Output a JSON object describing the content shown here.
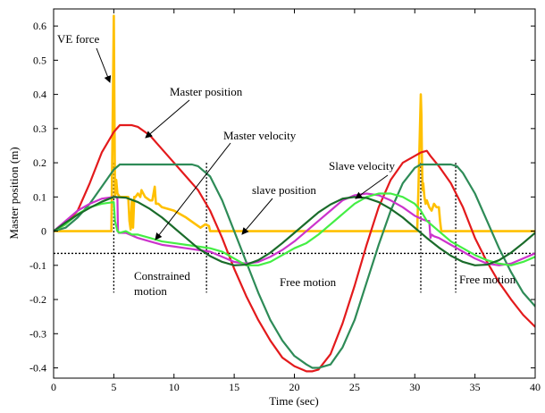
{
  "chart_data": {
    "type": "line",
    "title": "",
    "xlabel": "Time (sec)",
    "ylabel": "Master position (m)",
    "xlim": [
      0,
      40
    ],
    "ylim": [
      -0.43,
      0.65
    ],
    "xticks": [
      0,
      5,
      10,
      15,
      20,
      25,
      30,
      35,
      40
    ],
    "xtick_labels": [
      "0",
      "5",
      "10",
      "15",
      "20",
      "25",
      "30",
      "35",
      "40"
    ],
    "yticks": [
      -0.4,
      -0.3,
      -0.2,
      -0.1,
      0,
      0.1,
      0.2,
      0.3,
      0.4,
      0.5,
      0.6
    ],
    "ytick_labels": [
      "-0.4",
      "-0.3",
      "-0.2",
      "-0.1",
      "0",
      "0.1",
      "0.2",
      "0.3",
      "0.4",
      "0.5",
      "0.6"
    ],
    "grid": false,
    "series": [
      {
        "id": "ve-force",
        "color": "#ffc000",
        "x": [
          0,
          4.8,
          4.9,
          5.0,
          5.1,
          5.2,
          5.3,
          5.5,
          6.2,
          6.3,
          6.4,
          6.5,
          6.6,
          6.7,
          6.8,
          7,
          7.2,
          7.3,
          7.6,
          8,
          8.2,
          8.4,
          8.5,
          8.7,
          9,
          10,
          11,
          11.8,
          12.2,
          12.6,
          12.9,
          13.0,
          14,
          20,
          29,
          30.2,
          30.3,
          30.5,
          30.55,
          30.6,
          30.65,
          30.7,
          30.8,
          30.9,
          31,
          31.2,
          31.4,
          31.6,
          31.8,
          32,
          32.1,
          32.2,
          33,
          40
        ],
        "y": [
          0,
          0,
          0.3,
          0.63,
          0.1,
          0.15,
          0.11,
          0.1,
          0.1,
          0.03,
          0.005,
          0.09,
          0.01,
          0.1,
          0.1,
          0.11,
          0.1,
          0.12,
          0.1,
          0.09,
          0.09,
          0.13,
          0.08,
          0.08,
          0.07,
          0.06,
          0.04,
          0.02,
          0.01,
          0.02,
          0.015,
          0,
          0,
          0,
          0,
          0,
          0.12,
          0.4,
          0.34,
          0.2,
          0.12,
          0.14,
          0.1,
          0.08,
          0.09,
          0.07,
          0.06,
          0.08,
          0.07,
          0.07,
          0.03,
          0,
          0,
          0
        ]
      },
      {
        "id": "master-position",
        "color": "#e31a1c",
        "x": [
          0,
          1,
          2,
          3,
          4,
          5,
          5.5,
          6,
          6.5,
          7,
          8,
          9,
          10,
          11,
          12,
          13,
          14,
          15,
          16,
          17,
          18,
          19,
          20,
          21,
          21.5,
          22,
          23,
          24,
          25,
          26,
          27,
          28,
          29,
          30,
          30.5,
          31,
          31.3,
          32,
          33,
          34,
          35,
          36,
          37,
          38,
          39,
          40
        ],
        "y": [
          0,
          0.02,
          0.06,
          0.14,
          0.23,
          0.29,
          0.31,
          0.31,
          0.31,
          0.305,
          0.28,
          0.24,
          0.2,
          0.16,
          0.12,
          0.06,
          -0.02,
          -0.11,
          -0.19,
          -0.26,
          -0.32,
          -0.37,
          -0.395,
          -0.41,
          -0.41,
          -0.405,
          -0.36,
          -0.27,
          -0.16,
          -0.04,
          0.07,
          0.15,
          0.2,
          0.22,
          0.23,
          0.235,
          0.22,
          0.19,
          0.14,
          0.07,
          -0.02,
          -0.09,
          -0.15,
          -0.2,
          -0.245,
          -0.28
        ]
      },
      {
        "id": "slave-position",
        "color": "#2e8b57",
        "x": [
          0,
          1,
          2,
          3,
          4,
          5,
          5.5,
          6,
          8,
          10,
          11,
          11.5,
          12,
          13,
          14,
          15,
          16,
          17,
          18,
          19,
          20,
          21,
          21.5,
          22,
          23,
          24,
          25,
          26,
          27,
          28,
          29,
          30,
          30.5,
          31,
          32,
          33,
          33.5,
          34,
          35,
          36,
          37,
          38,
          39,
          40
        ],
        "y": [
          0,
          0.01,
          0.04,
          0.08,
          0.13,
          0.18,
          0.195,
          0.195,
          0.195,
          0.195,
          0.195,
          0.195,
          0.19,
          0.16,
          0.09,
          0.0,
          -0.09,
          -0.18,
          -0.26,
          -0.32,
          -0.365,
          -0.39,
          -0.4,
          -0.4,
          -0.39,
          -0.34,
          -0.26,
          -0.15,
          -0.04,
          0.06,
          0.14,
          0.185,
          0.195,
          0.195,
          0.195,
          0.195,
          0.19,
          0.17,
          0.11,
          0.03,
          -0.05,
          -0.12,
          -0.18,
          -0.22
        ]
      },
      {
        "id": "master-velocity",
        "color": "#cc33cc",
        "x": [
          0,
          1,
          2,
          3,
          4,
          5,
          5.2,
          5.3,
          5.35,
          5.4,
          5.6,
          6,
          7,
          8,
          9,
          10,
          11,
          12,
          13,
          14,
          15,
          16,
          17,
          18,
          19,
          20,
          21,
          22,
          23,
          24,
          25,
          26,
          27,
          28,
          29,
          30,
          30.3,
          30.6,
          31,
          31.2,
          31.3,
          31.4,
          31.6,
          32,
          33,
          34,
          35,
          36,
          37,
          38,
          39,
          40
        ],
        "y": [
          0,
          0.03,
          0.06,
          0.08,
          0.095,
          0.1,
          0.1,
          0.095,
          0.0,
          -0.005,
          -0.005,
          -0.005,
          -0.02,
          -0.03,
          -0.04,
          -0.045,
          -0.05,
          -0.055,
          -0.06,
          -0.075,
          -0.09,
          -0.095,
          -0.09,
          -0.075,
          -0.055,
          -0.03,
          0.0,
          0.03,
          0.06,
          0.09,
          0.105,
          0.11,
          0.105,
          0.09,
          0.07,
          0.045,
          0.04,
          0.035,
          0.03,
          0.03,
          -0.02,
          -0.01,
          -0.015,
          -0.02,
          -0.04,
          -0.06,
          -0.08,
          -0.095,
          -0.1,
          -0.095,
          -0.08,
          -0.065
        ]
      },
      {
        "id": "slave-velocity",
        "color": "#44ee44",
        "x": [
          0,
          1,
          2,
          3,
          4,
          5,
          5.1,
          5.3,
          5.5,
          6,
          6.5,
          7,
          8,
          9,
          10,
          11,
          12,
          13,
          14,
          15,
          16,
          17,
          18,
          19,
          20,
          21,
          22,
          23,
          24,
          25,
          26,
          27,
          28,
          29,
          30,
          30.5,
          31,
          32,
          33,
          34,
          35,
          36,
          37,
          38,
          39,
          40
        ],
        "y": [
          0,
          0.02,
          0.05,
          0.07,
          0.08,
          0.085,
          0.03,
          0.0,
          -0.005,
          0.0,
          -0.01,
          -0.01,
          -0.02,
          -0.03,
          -0.035,
          -0.04,
          -0.045,
          -0.05,
          -0.06,
          -0.08,
          -0.1,
          -0.1,
          -0.09,
          -0.07,
          -0.05,
          -0.035,
          -0.01,
          0.02,
          0.05,
          0.08,
          0.1,
          0.11,
          0.11,
          0.1,
          0.08,
          0.06,
          0.03,
          0.0,
          -0.03,
          -0.05,
          -0.07,
          -0.085,
          -0.095,
          -0.1,
          -0.09,
          -0.075
        ]
      },
      {
        "id": "reference-sine",
        "color": "#1a6b2a",
        "x": [
          0,
          1,
          2,
          3,
          4,
          5,
          6,
          7,
          8,
          9,
          10,
          11,
          12,
          13,
          14,
          15,
          16,
          17,
          18,
          19,
          20,
          21,
          22,
          23,
          24,
          25,
          26,
          27,
          28,
          29,
          30,
          31,
          32,
          33,
          34,
          35,
          36,
          37,
          38,
          39,
          40
        ],
        "y": [
          0,
          0.025,
          0.048,
          0.068,
          0.086,
          0.1,
          0.098,
          0.085,
          0.065,
          0.04,
          0.01,
          -0.02,
          -0.05,
          -0.073,
          -0.09,
          -0.1,
          -0.098,
          -0.085,
          -0.063,
          -0.035,
          -0.005,
          0.025,
          0.055,
          0.078,
          0.095,
          0.1,
          0.097,
          0.085,
          0.065,
          0.04,
          0.01,
          -0.02,
          -0.048,
          -0.072,
          -0.09,
          -0.1,
          -0.098,
          -0.085,
          -0.063,
          -0.035,
          -0.005
        ]
      }
    ],
    "reference_lines": {
      "horizontal_y": -0.065,
      "vertical_x": [
        5,
        12.7,
        30.5,
        33.4
      ]
    },
    "annotations": [
      {
        "id": "ve-force",
        "text": "VE force"
      },
      {
        "id": "master-position",
        "text": "Master position"
      },
      {
        "id": "master-velocity",
        "text": "Master velocity"
      },
      {
        "id": "slave-velocity",
        "text": "Slave velocity"
      },
      {
        "id": "slave-position",
        "text": "slave position"
      },
      {
        "id": "constrained-1",
        "text": "Constrained"
      },
      {
        "id": "constrained-2",
        "text": "motion"
      },
      {
        "id": "free-motion-1",
        "text": "Free motion"
      },
      {
        "id": "free-motion-2",
        "text": "Free motion"
      }
    ]
  }
}
